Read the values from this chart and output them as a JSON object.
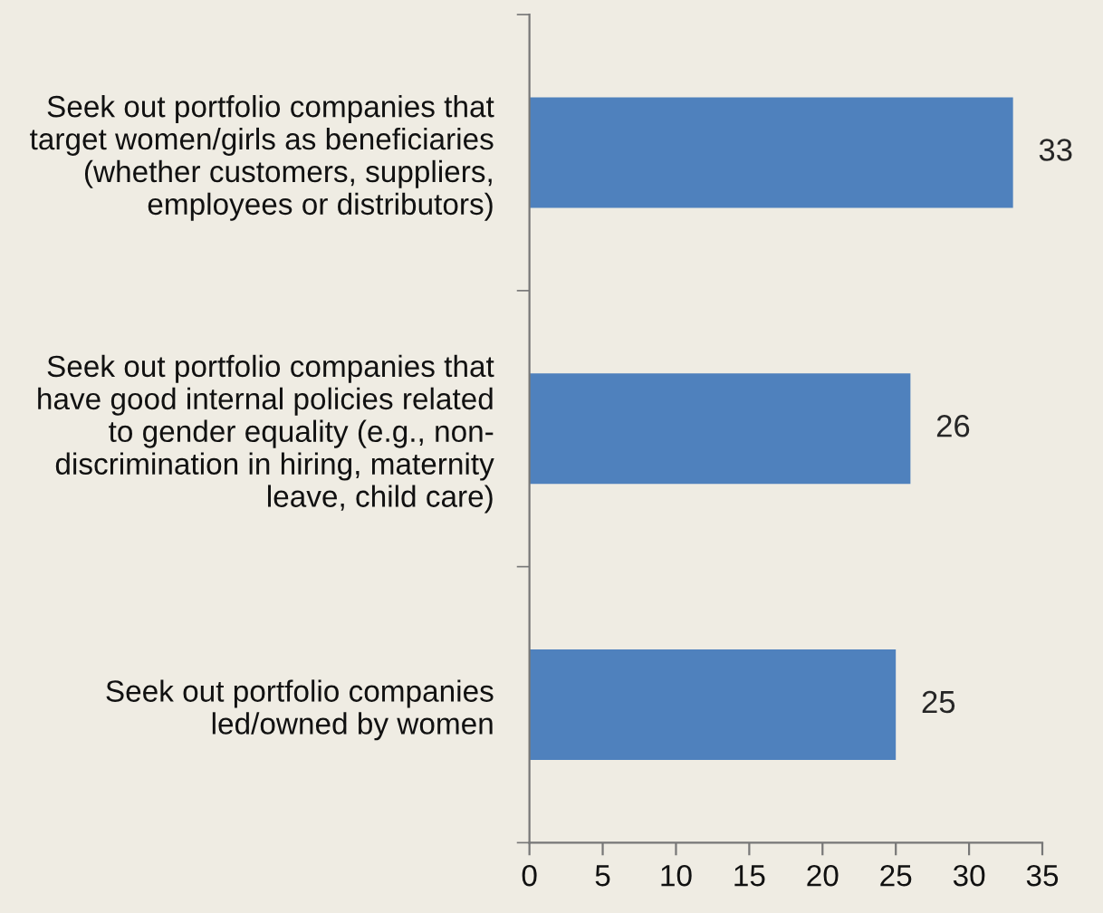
{
  "chart_data": {
    "type": "bar",
    "orientation": "horizontal",
    "categories": [
      "Seek out portfolio companies that\ntarget women/girls as beneficiaries\n(whether customers, suppliers,\nemployees or distributors)",
      "Seek out portfolio companies that\nhave good internal policies related\nto gender equality (e.g., non-\ndiscrimination in hiring, maternity\nleave, child care)",
      "Seek out portfolio companies\nled/owned by women"
    ],
    "values": [
      33,
      26,
      25
    ],
    "color": "#4f81bd",
    "xlim": [
      0,
      35
    ],
    "xticks": [
      0,
      5,
      10,
      15,
      20,
      25,
      30,
      35
    ],
    "data_labels": true,
    "grid": false,
    "legend": false
  }
}
